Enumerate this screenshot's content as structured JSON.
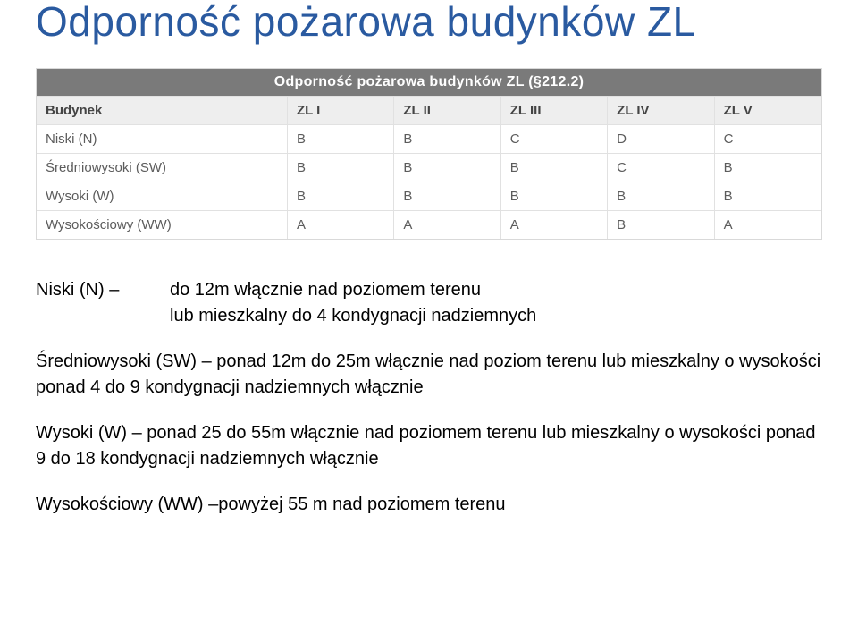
{
  "title": "Odporność pożarowa budynków ZL",
  "title_color": "#2a5aa0",
  "table": {
    "caption": "Odporność pożarowa budynków ZL (§212.2)",
    "header_bg": "#7a7a7a",
    "header_text_color": "#ffffff",
    "head_row_bg": "#eeeeee",
    "border_color": "#e1e1e1",
    "cell_text_color": "#5c5c5c",
    "columns": [
      "Budynek",
      "ZL I",
      "ZL II",
      "ZL III",
      "ZL IV",
      "ZL V"
    ],
    "rows": [
      [
        "Niski (N)",
        "B",
        "B",
        "C",
        "D",
        "C"
      ],
      [
        "Średniowysoki (SW)",
        "B",
        "B",
        "B",
        "C",
        "B"
      ],
      [
        "Wysoki (W)",
        "B",
        "B",
        "B",
        "B",
        "B"
      ],
      [
        "Wysokościowy (WW)",
        "A",
        "A",
        "A",
        "B",
        "A"
      ]
    ]
  },
  "defs": {
    "n_label": "Niski (N) –",
    "n_line1": "do 12m włącznie nad poziomem terenu",
    "n_line2": "lub mieszkalny do 4 kondygnacji nadziemnych",
    "sw": "Średniowysoki (SW) – ponad 12m do 25m włącznie nad poziom terenu lub mieszkalny o wysokości ponad 4 do 9 kondygnacji nadziemnych włącznie",
    "w": "Wysoki (W) – ponad 25 do 55m włącznie nad poziomem terenu lub mieszkalny o wysokości ponad 9 do 18 kondygnacji nadziemnych włącznie",
    "ww": "Wysokościowy (WW) –powyżej 55 m nad poziomem terenu"
  }
}
